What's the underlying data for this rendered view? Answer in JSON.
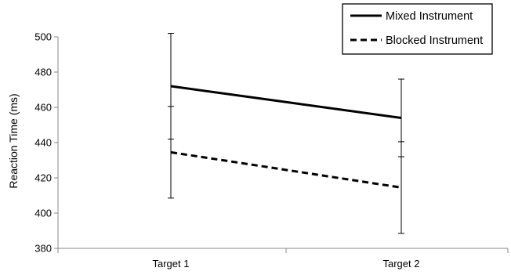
{
  "chart_data": {
    "type": "line",
    "title": "",
    "xlabel": "",
    "ylabel": "Reaction Time (ms)",
    "categories": [
      "Target 1",
      "Target 2"
    ],
    "ylim": [
      380,
      500
    ],
    "yticks": [
      380,
      400,
      420,
      440,
      460,
      480,
      500
    ],
    "grid": false,
    "legend_position": "top-right",
    "series": [
      {
        "name": "Mixed Instrument",
        "line_style": "solid",
        "color": "#000000",
        "values": [
          472,
          454
        ],
        "error": [
          30,
          22
        ]
      },
      {
        "name": "Blocked Instrument",
        "line_style": "dashed",
        "color": "#000000",
        "values": [
          434.5,
          414.5
        ],
        "error": [
          26,
          26
        ]
      }
    ]
  }
}
